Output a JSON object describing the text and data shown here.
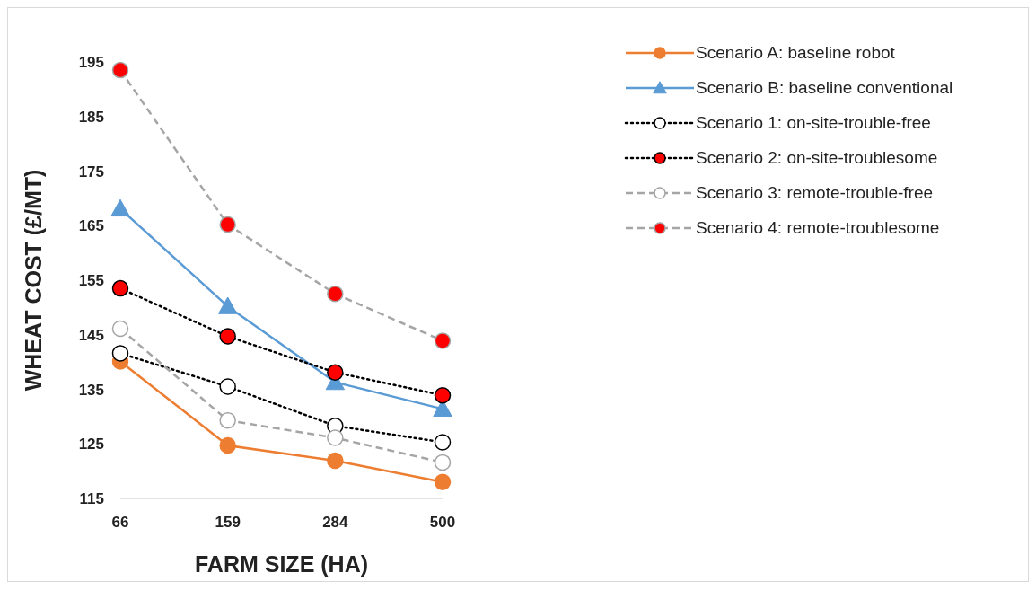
{
  "chart_data": {
    "type": "line",
    "xlabel": "FARM SIZE (HA)",
    "ylabel": "WHEAT COST (£/MT)",
    "categories": [
      "66",
      "159",
      "284",
      "500"
    ],
    "ylim": [
      115,
      195
    ],
    "yticks": [
      115,
      125,
      135,
      145,
      155,
      165,
      175,
      185,
      195
    ],
    "grid": false,
    "legend": "top right",
    "series": [
      {
        "name": "Scenario A: baseline robot",
        "color": "#ed7d31",
        "colors": [
          "#ed7d31",
          "#ed7d31",
          "#ed7d31",
          "#ed7d31"
        ],
        "marker": "circle",
        "line_style": "solid",
        "values": [
          140.1,
          124.7,
          121.9,
          118.0
        ]
      },
      {
        "name": "Scenario B: baseline conventional",
        "color": "#5b9bd5",
        "colors": [
          "#5b9bd5",
          "#5b9bd5",
          "#5b9bd5",
          "#5b9bd5"
        ],
        "marker": "triangle",
        "line_style": "solid",
        "values": [
          168.1,
          150.2,
          136.3,
          131.4
        ]
      },
      {
        "name": "Scenario 1: on-site-trouble-free",
        "color": "#000000",
        "colors": [
          "#ffffff",
          "#ffffff",
          "#ffffff",
          "#ffffff"
        ],
        "marker": "circle",
        "line_style": "dotted",
        "values": [
          141.6,
          135.5,
          128.3,
          125.3
        ]
      },
      {
        "name": "Scenario 2: on-site-troublesome",
        "color": "#000000",
        "colors": [
          "#ff0000",
          "#ff0000",
          "#ff0000",
          "#ff0000"
        ],
        "marker": "circle",
        "line_style": "dotted",
        "values": [
          153.5,
          144.7,
          138.1,
          133.9
        ]
      },
      {
        "name": "Scenario 3: remote-trouble-free",
        "color": "#a5a5a5",
        "colors": [
          "#ffffff",
          "#ffffff",
          "#ffffff",
          "#ffffff"
        ],
        "marker": "circle",
        "line_style": "dashed",
        "values": [
          146.1,
          129.3,
          126.1,
          121.6
        ]
      },
      {
        "name": "Scenario 4: remote-troublesome",
        "color": "#a5a5a5",
        "colors": [
          "#ff0000",
          "#ff0000",
          "#ff0000",
          "#ff0000"
        ],
        "marker": "circle",
        "line_style": "dashed",
        "values": [
          193.5,
          165.2,
          152.5,
          143.9
        ]
      }
    ]
  }
}
